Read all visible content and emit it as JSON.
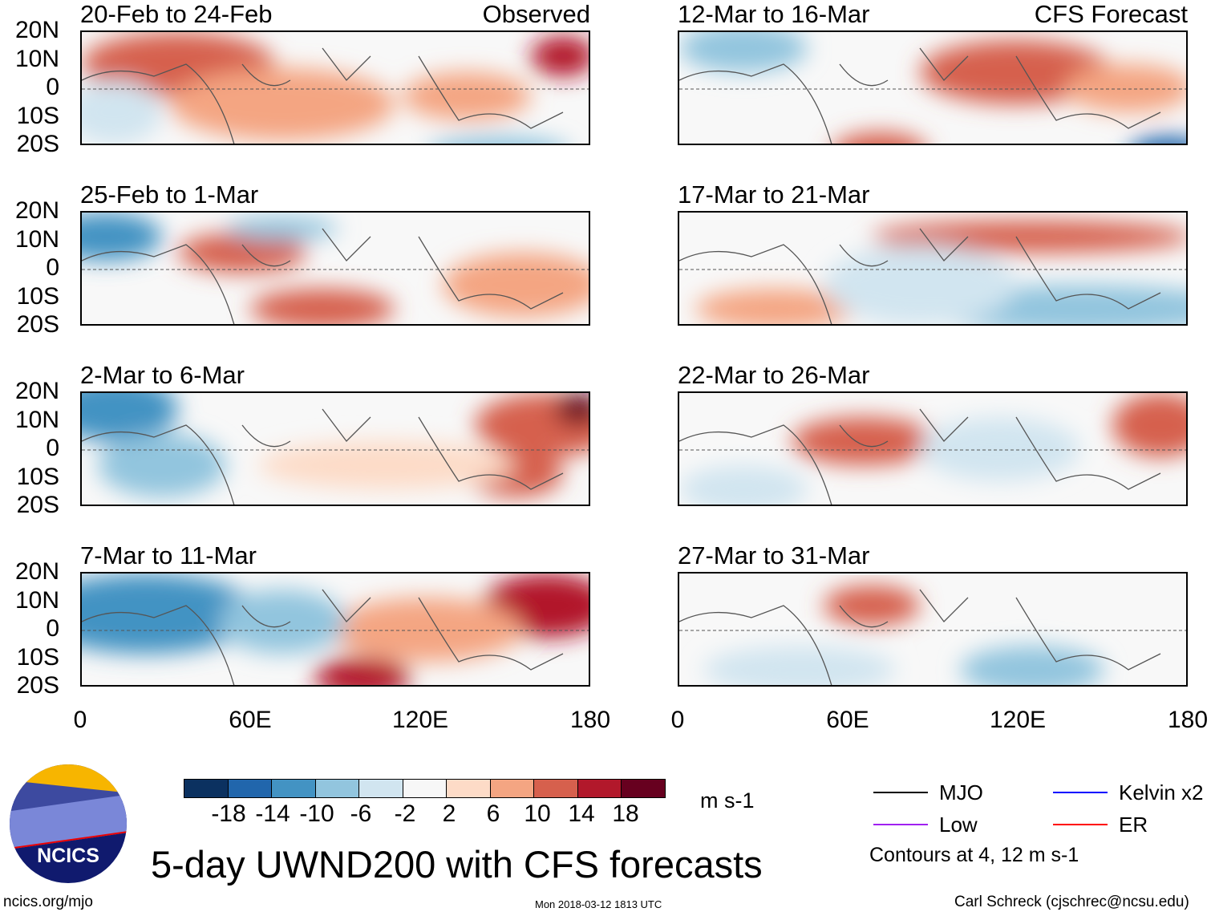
{
  "title": "5-day UWND200 with CFS forecasts",
  "units": "m s-1",
  "footer": {
    "left": "ncics.org/mjo",
    "center": "Mon 2018-03-12 1813 UTC",
    "right": "Carl Schreck (cjschrec@ncsu.edu)"
  },
  "logo_text": "NCICS",
  "columns": [
    {
      "label": "Observed",
      "panels": [
        "20-Feb to 24-Feb",
        "25-Feb to 1-Mar",
        "2-Mar to 6-Mar",
        "7-Mar to 11-Mar"
      ]
    },
    {
      "label": "CFS Forecast",
      "panels": [
        "12-Mar to 16-Mar",
        "17-Mar to 21-Mar",
        "22-Mar to 26-Mar",
        "27-Mar to 31-Mar"
      ]
    }
  ],
  "lat_labels": [
    "20N",
    "10N",
    "0",
    "10S",
    "20S"
  ],
  "lon_labels": [
    "0",
    "60E",
    "120E",
    "180"
  ],
  "colorbar": {
    "labels": [
      "-18",
      "-14",
      "-10",
      "-6",
      "-2",
      "2",
      "6",
      "10",
      "14",
      "18"
    ],
    "colors": [
      "#0b3160",
      "#2166ac",
      "#4393c3",
      "#92c5de",
      "#d1e5f0",
      "#f7f7f7",
      "#fddbc7",
      "#f4a582",
      "#d6604d",
      "#b2182b",
      "#67001f"
    ]
  },
  "legend": {
    "items": [
      {
        "label": "MJO",
        "color": "#000000"
      },
      {
        "label": "Kelvin x2",
        "color": "#0000ff"
      },
      {
        "label": "Low",
        "color": "#a020f0"
      },
      {
        "label": "ER",
        "color": "#ff0000"
      }
    ],
    "note": "Contours at 4, 12 m s-1"
  }
}
